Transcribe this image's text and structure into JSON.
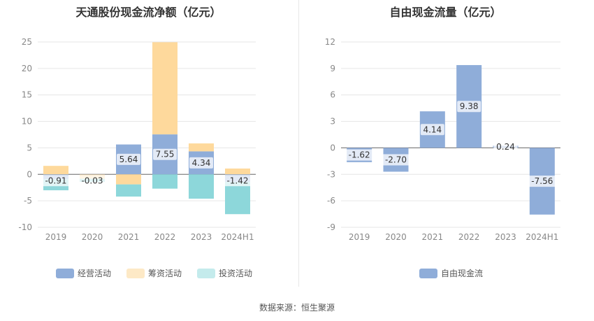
{
  "chart_data": [
    {
      "type": "bar",
      "stacked": true,
      "title": "天通股份现金流净额（亿元）",
      "categories": [
        "2019",
        "2020",
        "2021",
        "2022",
        "2023",
        "2024H1"
      ],
      "ylim": [
        -10,
        25
      ],
      "yticks": [
        25,
        20,
        15,
        10,
        5,
        0,
        -5,
        -10
      ],
      "grid": true,
      "legend_position": "bottom",
      "series": [
        {
          "name": "经营活动",
          "color": "#8fadd9",
          "values": [
            -0.91,
            -0.03,
            5.64,
            7.55,
            4.34,
            -1.42
          ]
        },
        {
          "name": "筹资活动",
          "color": "#fed99c",
          "values": [
            1.6,
            -0.8,
            -1.9,
            17.4,
            1.5,
            1.1
          ]
        },
        {
          "name": "投资活动",
          "color": "#8dd7da",
          "values": [
            -2.1,
            -0.6,
            -2.3,
            -2.7,
            -4.6,
            -6.1
          ]
        }
      ],
      "labels": [
        "-0.91",
        "-0.03",
        "5.64",
        "7.55",
        "4.34",
        "-1.42"
      ]
    },
    {
      "type": "bar",
      "title": "自由现金流量（亿元）",
      "categories": [
        "2019",
        "2020",
        "2021",
        "2022",
        "2023",
        "2024H1"
      ],
      "ylim": [
        -9,
        12
      ],
      "yticks": [
        12,
        9,
        6,
        3,
        0,
        -3,
        -6,
        -9
      ],
      "grid": true,
      "legend_position": "bottom",
      "series": [
        {
          "name": "自由现金流",
          "color": "#8fadd9",
          "values": [
            -1.62,
            -2.7,
            4.14,
            9.38,
            0.24,
            -7.56
          ]
        }
      ],
      "labels": [
        "-1.62",
        "-2.70",
        "4.14",
        "9.38",
        "0.24",
        "-7.56"
      ]
    }
  ],
  "source": "数据来源：恒生聚源"
}
